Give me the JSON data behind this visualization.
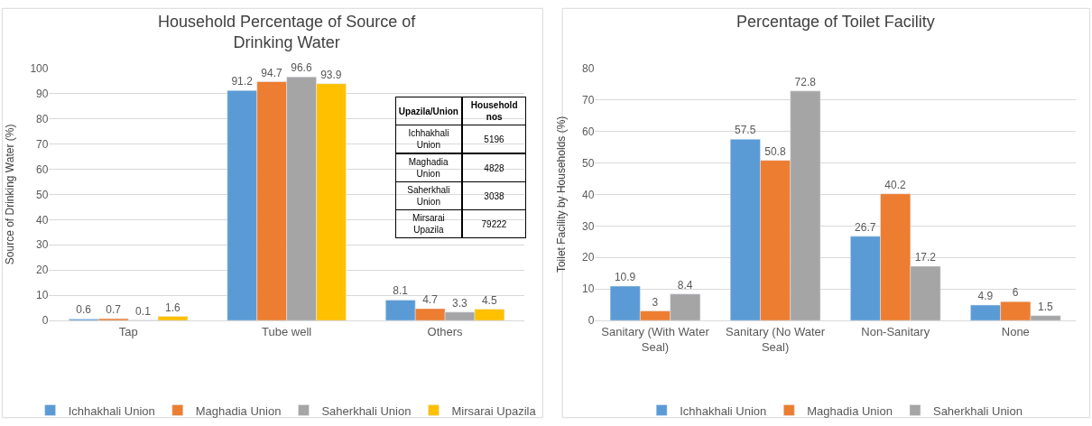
{
  "chart_data": [
    {
      "type": "bar",
      "title": "Household Percentage of Source of Drinking Water",
      "ylabel": "Source of Drinking Water (%)",
      "categories": [
        "Tap",
        "Tube well",
        "Others"
      ],
      "ylim": [
        0,
        100
      ],
      "yticks": [
        0,
        10,
        20,
        30,
        40,
        50,
        60,
        70,
        80,
        90,
        100
      ],
      "grid": "y",
      "legend": "bottom",
      "data_labels": true,
      "series": [
        {
          "name": "Ichhakhali Union",
          "color": "#5b9bd5",
          "values": [
            0.6,
            91.2,
            8.1
          ]
        },
        {
          "name": "Maghadia Union",
          "color": "#ed7d31",
          "values": [
            0.7,
            94.7,
            4.7
          ]
        },
        {
          "name": "Saherkhali Union",
          "color": "#a5a5a5",
          "values": [
            0.1,
            96.6,
            3.3
          ]
        },
        {
          "name": "Mirsarai Upazila",
          "color": "#ffc000",
          "values": [
            1.6,
            93.9,
            4.5
          ]
        }
      ]
    },
    {
      "type": "other",
      "annotations": [
        "Upazila/Union",
        "Household nos"
      ],
      "categories": [
        "Ichhakhali Union",
        "Maghadia Union",
        "Saherkhali Union",
        "Mirsarai Upazila"
      ],
      "values": [
        5196,
        4828,
        3038,
        79222
      ],
      "data_labels": true
    },
    {
      "type": "bar",
      "title": "Percentage of Toilet Facility",
      "ylabel": "Toilet Facility by Households (%)",
      "categories": [
        "Sanitary (With Water Seal)",
        "Sanitary (No Water Seal)",
        "Non-Sanitary",
        "None"
      ],
      "ylim": [
        0,
        80
      ],
      "yticks": [
        0,
        10,
        20,
        30,
        40,
        50,
        60,
        70,
        80
      ],
      "grid": "y",
      "legend": "bottom",
      "data_labels": true,
      "series": [
        {
          "name": "Ichhakhali Union",
          "color": "#5b9bd5",
          "values": [
            10.9,
            57.5,
            26.7,
            4.9
          ]
        },
        {
          "name": "Maghadia Union",
          "color": "#ed7d31",
          "values": [
            3,
            50.8,
            40.2,
            6
          ]
        },
        {
          "name": "Saherkhali Union",
          "color": "#a5a5a5",
          "values": [
            8.4,
            72.8,
            17.2,
            1.5
          ]
        }
      ]
    }
  ]
}
